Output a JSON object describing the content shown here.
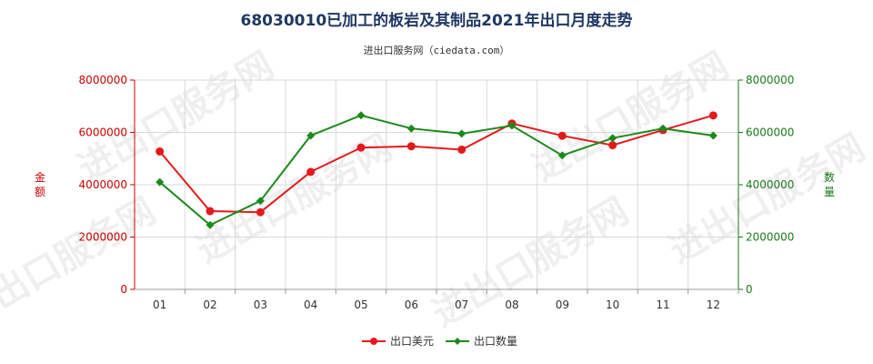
{
  "chart_data": {
    "type": "line",
    "title": "68030010已加工的板岩及其制品2021年出口月度走势",
    "subtitle": "进出口服务网（ciedata.com）",
    "categories": [
      "01",
      "02",
      "03",
      "04",
      "05",
      "06",
      "07",
      "08",
      "09",
      "10",
      "11",
      "12"
    ],
    "series": [
      {
        "name": "出口美元",
        "axis": "left",
        "color": "#e31a1c",
        "values": [
          5270000,
          2990000,
          2950000,
          4490000,
          5420000,
          5470000,
          5340000,
          6340000,
          5870000,
          5510000,
          6090000,
          6650000
        ]
      },
      {
        "name": "出口数量",
        "axis": "right",
        "color": "#1b8a1b",
        "values": [
          4100000,
          2460000,
          3380000,
          5880000,
          6650000,
          6150000,
          5950000,
          6260000,
          5120000,
          5780000,
          6150000,
          5880000
        ]
      }
    ],
    "y_left": {
      "label": "金额",
      "color": "#cc0000",
      "lim": [
        0,
        8000000
      ],
      "ticks": [
        "0",
        "2000000",
        "4000000",
        "6000000",
        "8000000"
      ]
    },
    "y_right": {
      "label": "数量",
      "color": "#1b7a1b",
      "lim": [
        0,
        8000000
      ],
      "ticks": [
        "0",
        "2000000",
        "4000000",
        "6000000",
        "8000000"
      ]
    },
    "grid": true,
    "legend": "bottom-center"
  }
}
